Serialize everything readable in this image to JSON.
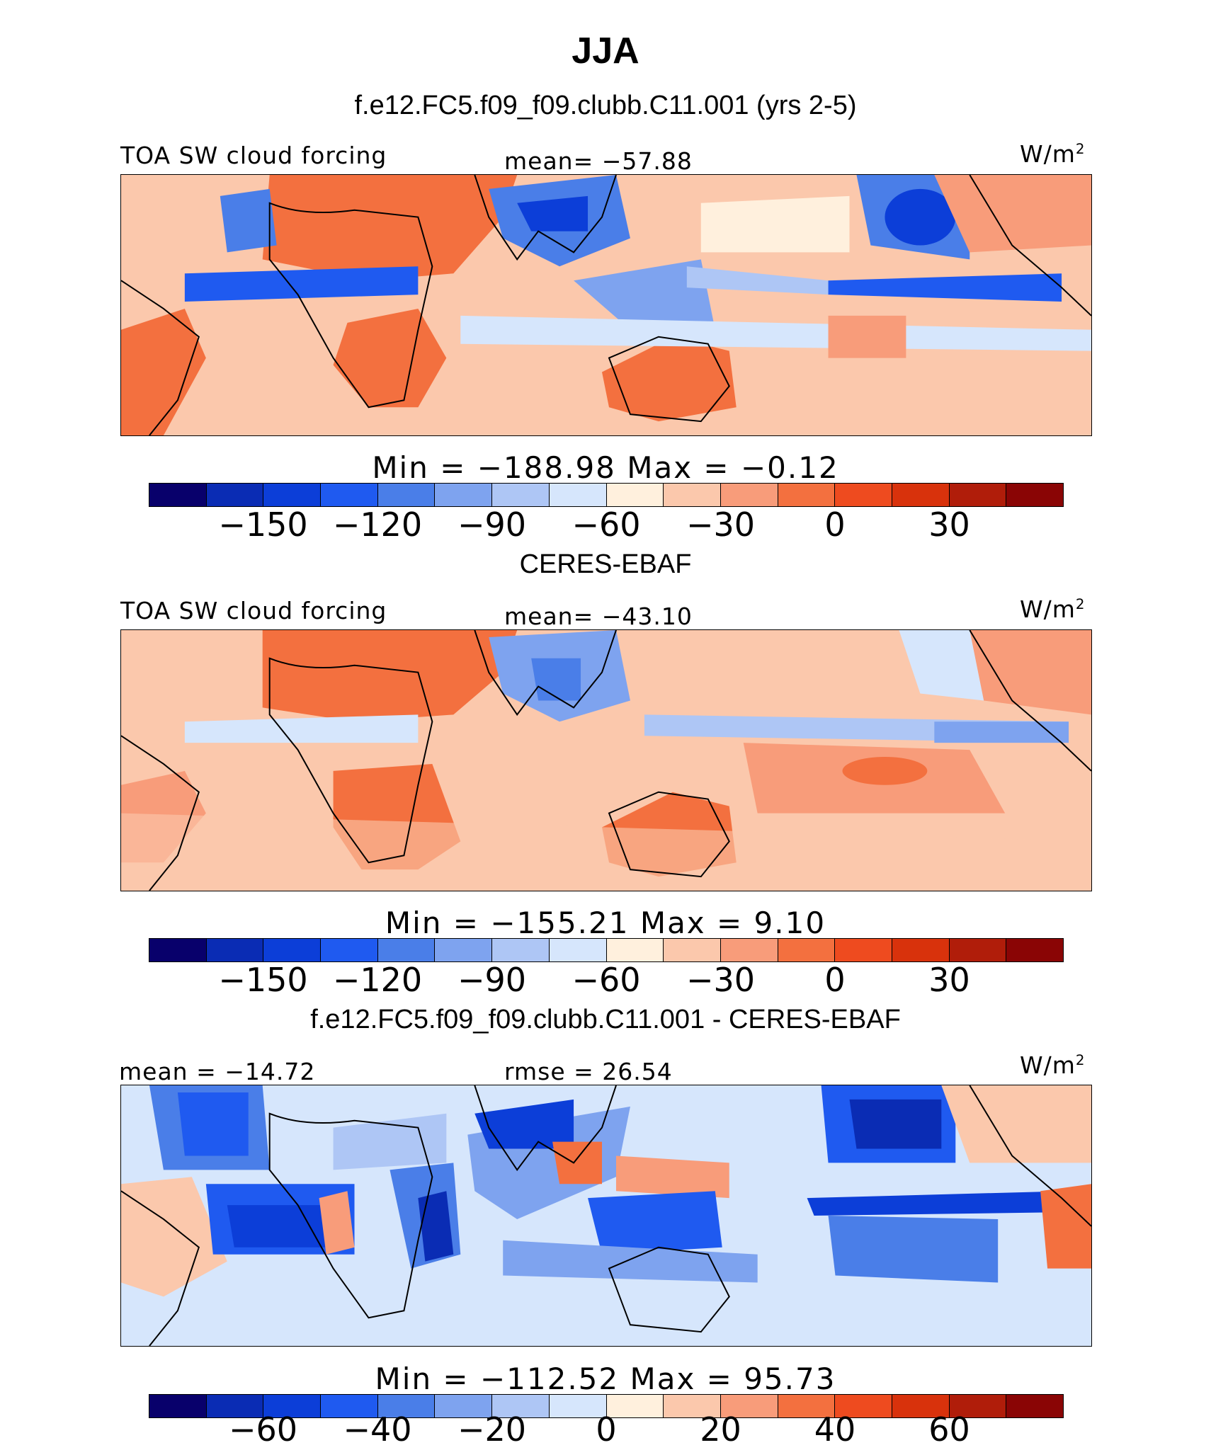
{
  "title": "JJA",
  "colors": [
    "#08006b",
    "#0a2cb4",
    "#0c3ed8",
    "#1f5af0",
    "#4a7ee8",
    "#7ea3ef",
    "#aec6f5",
    "#d6e6fc",
    "#fff0dd",
    "#fbc8ac",
    "#f89c7a",
    "#f3703f",
    "#ee4b1f",
    "#d8320c",
    "#b01d0a",
    "#8a0505"
  ],
  "panels": [
    {
      "id": "model",
      "header": "f.e12.FC5.f09_f09.clubb.C11.001 (yrs 2-5)",
      "left_label": "TOA SW cloud forcing",
      "center_label": "mean= −57.88",
      "units": "W/m",
      "units_sup": "2",
      "minmax": "Min  =  −188.98  Max  =    −0.12",
      "ticks": [
        "−150",
        "−120",
        "−90",
        "−60",
        "−30",
        "0",
        "30"
      ]
    },
    {
      "id": "obs",
      "header": "CERES-EBAF",
      "left_label": "TOA SW cloud forcing",
      "center_label": "mean= −43.10",
      "units": "W/m",
      "units_sup": "2",
      "minmax": "Min  =  −155.21  Max  =    9.10",
      "ticks": [
        "−150",
        "−120",
        "−90",
        "−60",
        "−30",
        "0",
        "30"
      ]
    },
    {
      "id": "diff",
      "header": "f.e12.FC5.f09_f09.clubb.C11.001 - CERES-EBAF",
      "left_label": "mean = −14.72",
      "center_label": "rmse =  26.54",
      "units": "W/m",
      "units_sup": "2",
      "minmax": "Min  =  −112.52  Max  =    95.73",
      "ticks": [
        "−60",
        "−40",
        "−20",
        "0",
        "20",
        "40",
        "60"
      ]
    }
  ]
}
